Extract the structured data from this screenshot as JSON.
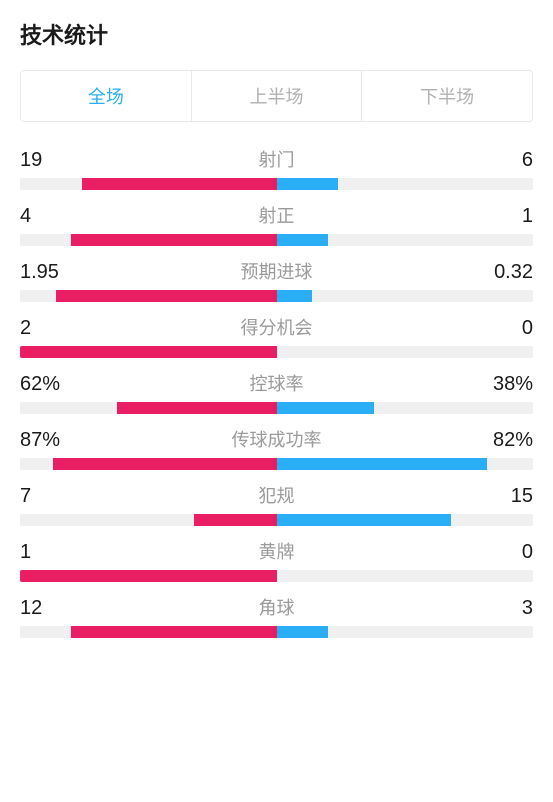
{
  "title": "技术统计",
  "colors": {
    "left": "#e91e63",
    "right": "#2aaef5",
    "track": "#f0f0f0",
    "active_tab": "#2aaef5",
    "inactive_tab": "#b0b0b0",
    "label": "#9a9a9a",
    "value": "#1a1a1a"
  },
  "tabs": [
    {
      "label": "全场",
      "active": true
    },
    {
      "label": "上半场",
      "active": false
    },
    {
      "label": "下半场",
      "active": false
    }
  ],
  "stats": [
    {
      "label": "射门",
      "left_display": "19",
      "right_display": "6",
      "left_pct": 76,
      "right_pct": 24
    },
    {
      "label": "射正",
      "left_display": "4",
      "right_display": "1",
      "left_pct": 80,
      "right_pct": 20
    },
    {
      "label": "预期进球",
      "left_display": "1.95",
      "right_display": "0.32",
      "left_pct": 86,
      "right_pct": 14
    },
    {
      "label": "得分机会",
      "left_display": "2",
      "right_display": "0",
      "left_pct": 100,
      "right_pct": 0
    },
    {
      "label": "控球率",
      "left_display": "62%",
      "right_display": "38%",
      "left_pct": 62,
      "right_pct": 38
    },
    {
      "label": "传球成功率",
      "left_display": "87%",
      "right_display": "82%",
      "left_pct": 87,
      "right_pct": 82
    },
    {
      "label": "犯规",
      "left_display": "7",
      "right_display": "15",
      "left_pct": 32,
      "right_pct": 68
    },
    {
      "label": "黄牌",
      "left_display": "1",
      "right_display": "0",
      "left_pct": 100,
      "right_pct": 0
    },
    {
      "label": "角球",
      "left_display": "12",
      "right_display": "3",
      "left_pct": 80,
      "right_pct": 20
    }
  ]
}
